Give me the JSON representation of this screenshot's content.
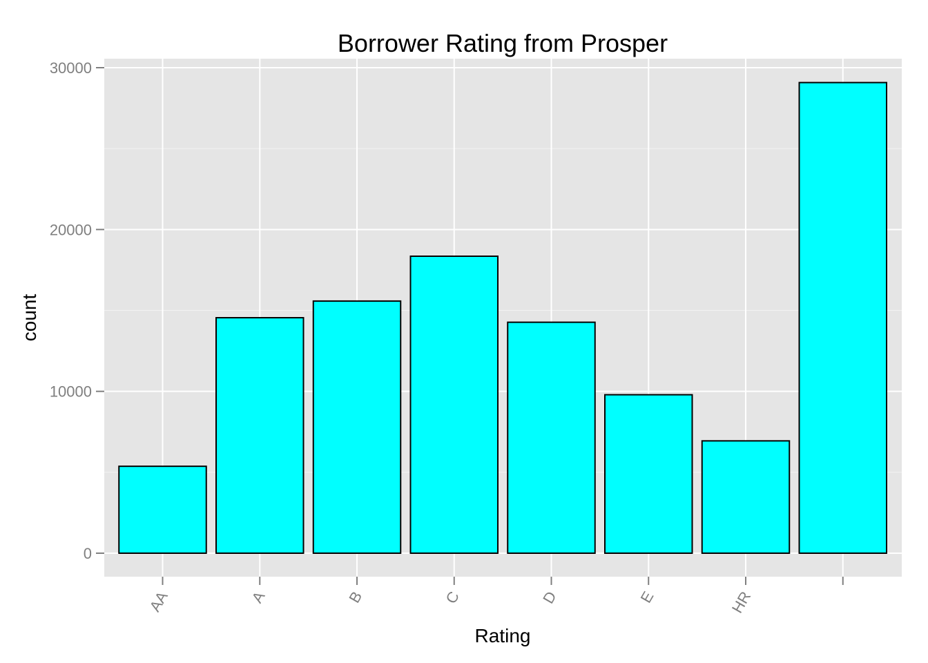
{
  "chart_data": {
    "type": "bar",
    "title": "Borrower Rating from Prosper",
    "xlabel": "Rating",
    "ylabel": "count",
    "categories": [
      "AA",
      "A",
      "B",
      "C",
      "D",
      "E",
      "HR",
      ""
    ],
    "values": [
      5370,
      14550,
      15580,
      18350,
      14270,
      9790,
      6940,
      29080
    ],
    "ylim": [
      0,
      30000
    ],
    "yticks": [
      0,
      10000,
      20000,
      30000
    ],
    "ytick_labels": [
      "0",
      "10000",
      "20000",
      "30000"
    ],
    "grid": true,
    "legend": "none",
    "colors": {
      "bar_fill": "#00ffff",
      "bar_stroke": "#000000",
      "panel_background": "#e5e5e5",
      "grid_major": "#ffffff",
      "grid_minor": "#f2f2f2",
      "tick_label": "#7f7f7f"
    }
  }
}
